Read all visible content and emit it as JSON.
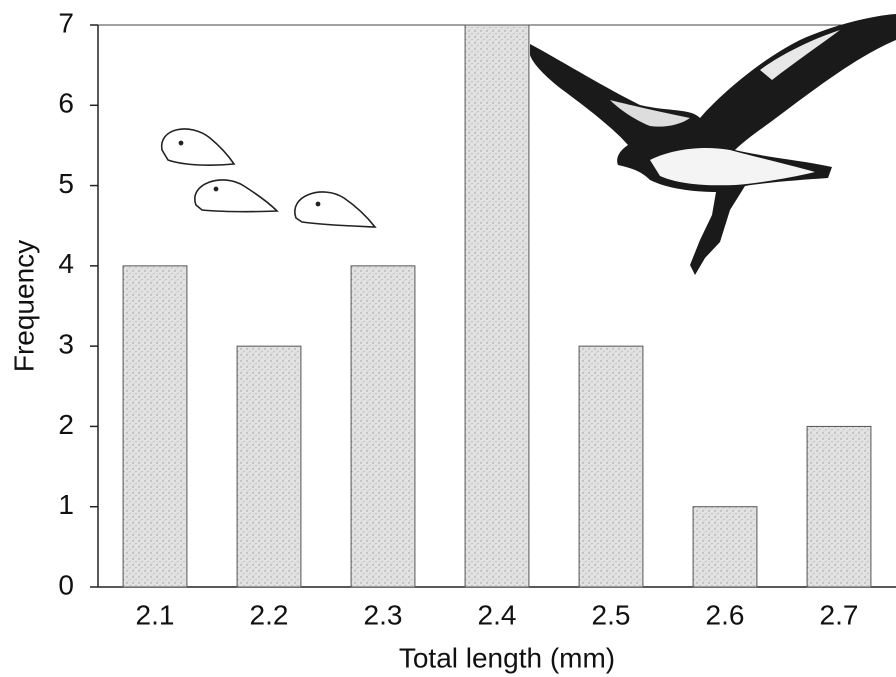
{
  "chart_data": {
    "type": "bar",
    "categories": [
      "2.1",
      "2.2",
      "2.3",
      "2.4",
      "2.5",
      "2.6",
      "2.7"
    ],
    "values": [
      4,
      3,
      4,
      7,
      3,
      1,
      2
    ],
    "color": "#d9d9d9",
    "x_label": "Total length (mm)",
    "y_label": "Frequency",
    "ylim": [
      0,
      7
    ],
    "yticks": [
      0,
      1,
      2,
      3,
      4,
      5,
      6,
      7
    ]
  }
}
